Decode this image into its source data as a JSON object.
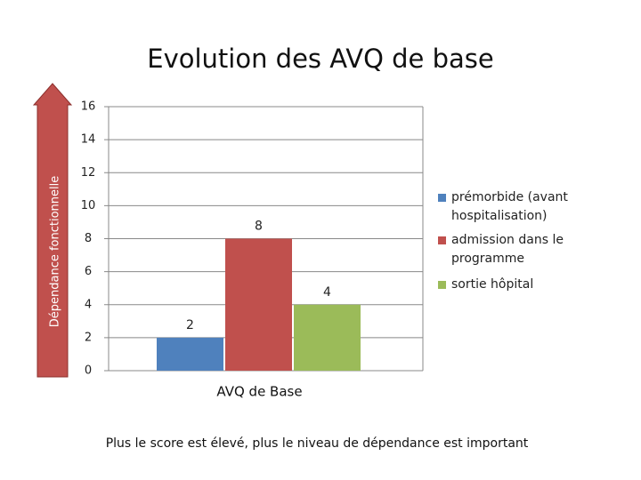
{
  "chart_data": {
    "type": "bar",
    "title": "Evolution des AVQ de base",
    "y_label": "Dépendance fonctionnelle",
    "categories": [
      "AVQ de Base"
    ],
    "series": [
      {
        "name": "prémorbide (avant hospitalisation)",
        "color": "#4f81bd",
        "values": [
          2
        ]
      },
      {
        "name": "admission dans le programme",
        "color": "#c0504d",
        "values": [
          8
        ]
      },
      {
        "name": "sortie hôpital",
        "color": "#9bbb59",
        "values": [
          4
        ]
      }
    ],
    "ylim": [
      0,
      16
    ],
    "yticks": [
      0,
      2,
      4,
      6,
      8,
      10,
      12,
      14,
      16
    ],
    "grid": true,
    "legend": "right",
    "footnote": "Plus le score est élevé, plus le niveau de dépendance est important"
  }
}
